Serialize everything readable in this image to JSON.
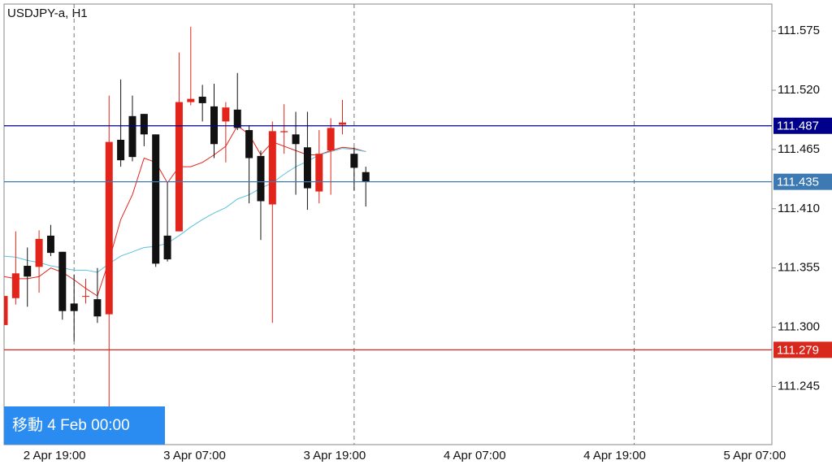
{
  "chart_data": {
    "type": "candlestick",
    "title": "USDJPY-a, H1",
    "x": [
      0,
      1,
      2,
      3,
      4,
      5,
      6,
      7,
      8,
      9,
      10,
      11,
      12,
      13,
      14,
      15,
      16,
      17,
      18,
      19,
      20,
      21,
      22,
      23,
      24,
      25,
      26,
      27,
      28,
      29,
      30,
      31
    ],
    "open": [
      111.302,
      111.327,
      111.357,
      111.356,
      111.385,
      111.37,
      111.322,
      111.329,
      111.326,
      111.312,
      111.474,
      111.496,
      111.498,
      111.479,
      111.385,
      111.389,
      111.509,
      111.514,
      111.505,
      111.491,
      111.502,
      111.483,
      111.459,
      111.414,
      111.481,
      111.479,
      111.467,
      111.426,
      111.464,
      111.488,
      111.461,
      111.444
    ],
    "high": [
      111.329,
      111.389,
      111.374,
      111.39,
      111.395,
      111.37,
      111.349,
      111.345,
      111.355,
      111.515,
      111.53,
      111.515,
      111.498,
      111.479,
      111.434,
      111.555,
      111.579,
      111.525,
      111.526,
      111.509,
      111.536,
      111.487,
      111.464,
      111.491,
      111.507,
      111.5,
      111.5,
      111.483,
      111.494,
      111.511,
      111.467,
      111.449
    ],
    "low": [
      111.302,
      111.321,
      111.319,
      111.332,
      111.366,
      111.307,
      111.287,
      111.322,
      111.304,
      111.219,
      111.449,
      111.454,
      111.468,
      111.356,
      111.361,
      111.389,
      111.506,
      111.491,
      111.457,
      111.453,
      111.483,
      111.415,
      111.381,
      111.304,
      111.461,
      111.423,
      111.409,
      111.415,
      111.423,
      111.479,
      111.427,
      111.412
    ],
    "close": [
      111.329,
      111.35,
      111.347,
      111.382,
      111.369,
      111.315,
      111.315,
      111.329,
      111.31,
      111.472,
      111.455,
      111.458,
      111.479,
      111.359,
      111.363,
      111.509,
      111.512,
      111.508,
      111.47,
      111.504,
      111.485,
      111.457,
      111.417,
      111.482,
      111.482,
      111.47,
      111.429,
      111.461,
      111.485,
      111.49,
      111.448,
      111.435
    ],
    "up_color": "#e3241b",
    "down_color": "#111111",
    "series": [
      {
        "color": "#e3241b",
        "values": [
          111.347,
          111.345,
          111.345,
          111.347,
          111.355,
          111.351,
          111.344,
          111.336,
          111.329,
          111.362,
          111.4,
          111.423,
          111.457,
          111.453,
          111.434,
          111.449,
          111.449,
          111.453,
          111.46,
          111.468,
          111.487,
          111.479,
          111.46,
          111.472,
          111.468,
          111.464,
          111.46,
          111.46,
          111.464,
          111.467,
          111.466,
          111.463
        ]
      },
      {
        "color": "#5bc0de",
        "values": [
          111.366,
          111.365,
          111.362,
          111.36,
          111.357,
          111.355,
          111.353,
          111.353,
          111.351,
          111.359,
          111.366,
          111.37,
          111.374,
          111.375,
          111.378,
          111.385,
          111.393,
          111.4,
          111.406,
          111.411,
          111.419,
          111.423,
          111.429,
          111.434,
          111.442,
          111.449,
          111.454,
          111.46,
          111.463,
          111.466,
          111.465,
          111.463
        ]
      }
    ],
    "hlines": [
      {
        "value": 111.487,
        "color": "#00008b"
      },
      {
        "value": 111.435,
        "color": "#3d7ab3"
      },
      {
        "value": 111.279,
        "color": "#d8271c"
      }
    ],
    "xlim": [
      0,
      65.8
    ],
    "xticks": [
      {
        "value": 6,
        "label": "2 Apr 19:00"
      },
      {
        "value": 18,
        "label": "3 Apr 07:00"
      },
      {
        "value": 30,
        "label": "3 Apr 19:00"
      },
      {
        "value": 42,
        "label": "4 Apr 07:00"
      },
      {
        "value": 54,
        "label": "4 Apr 19:00"
      },
      {
        "value": 66,
        "label": "5 Apr 07:00"
      }
    ],
    "ylim": [
      111.191,
      111.6
    ],
    "yticks": [
      111.575,
      {
        "value": 111.52,
        "label": "111.520"
      },
      111.465,
      {
        "value": 111.41,
        "label": "111.410"
      },
      111.355,
      {
        "value": 111.3,
        "label": "111.300"
      },
      111.245
    ]
  },
  "ui": {
    "button": "移動 4 Feb 00:00"
  }
}
